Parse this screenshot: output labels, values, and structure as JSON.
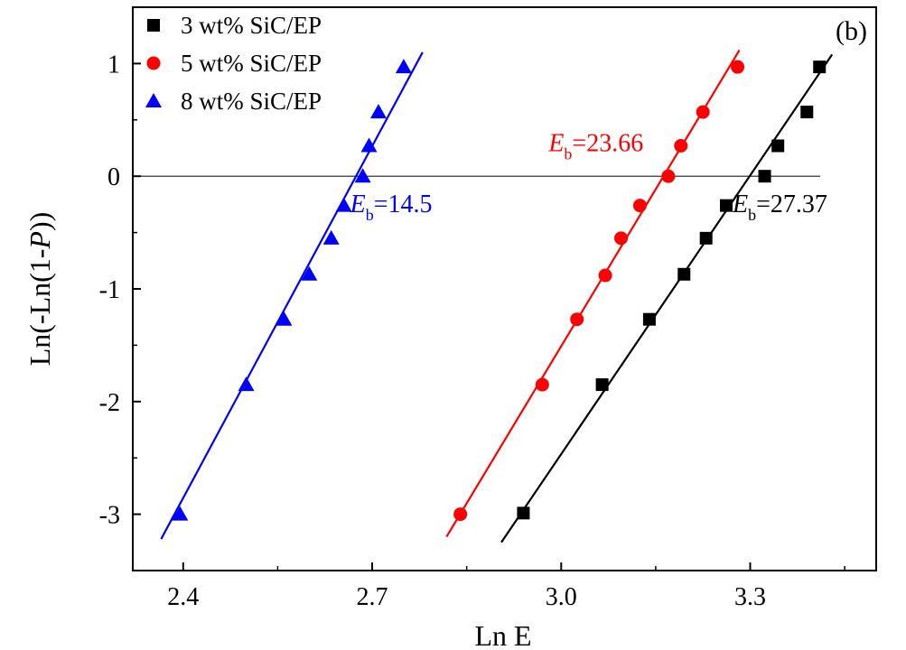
{
  "chart_data": {
    "type": "scatter",
    "panel_label": "(b)",
    "xlabel": "Ln E",
    "ylabel_parts": [
      "Ln(-Ln(1-",
      "P",
      "))"
    ],
    "xlim": [
      2.32,
      3.5
    ],
    "ylim": [
      -3.5,
      1.5
    ],
    "xticks": [
      2.4,
      2.7,
      3.0,
      3.3
    ],
    "xtick_labels": [
      "2.4",
      "2.7",
      "3.0",
      "3.3"
    ],
    "yticks": [
      -3,
      -2,
      -1,
      0,
      1
    ],
    "ytick_labels": [
      "-3",
      "-2",
      "-1",
      "0",
      "1"
    ],
    "reference_line_y": 0,
    "legend_position": "top-left",
    "series": [
      {
        "name": "3 wt% SiC/EP",
        "color": "#000000",
        "marker": "square",
        "x": [
          2.94,
          3.065,
          3.14,
          3.195,
          3.23,
          3.262,
          3.323,
          3.344,
          3.39,
          3.41
        ],
        "y": [
          -2.99,
          -1.85,
          -1.27,
          -0.87,
          -0.55,
          -0.26,
          0.0,
          0.27,
          0.57,
          0.97
        ],
        "fit_x": [
          2.905,
          3.43
        ],
        "fit_y": [
          -3.25,
          1.08
        ],
        "annotation": {
          "E": "E",
          "sub": "b",
          "value": "=27.37",
          "x": 3.272,
          "y": -0.32
        }
      },
      {
        "name": "5 wt% SiC/EP",
        "color": "#ff0000",
        "marker": "circle",
        "x": [
          2.84,
          2.97,
          3.025,
          3.07,
          3.095,
          3.125,
          3.17,
          3.19,
          3.225,
          3.28
        ],
        "y": [
          -3.0,
          -1.85,
          -1.27,
          -0.88,
          -0.55,
          -0.26,
          0.0,
          0.27,
          0.57,
          0.97
        ],
        "fit_x": [
          2.818,
          3.283
        ],
        "fit_y": [
          -3.2,
          1.12
        ],
        "annotation": {
          "E": "E",
          "sub": "b",
          "value": "=23.66",
          "x": 2.98,
          "y": 0.22
        }
      },
      {
        "name": "8 wt% SiC/EP",
        "color": "#0000ff",
        "marker": "triangle",
        "x": [
          2.395,
          2.5,
          2.56,
          2.6,
          2.635,
          2.655,
          2.685,
          2.695,
          2.71,
          2.75
        ],
        "y": [
          -3.0,
          -1.85,
          -1.27,
          -0.87,
          -0.55,
          -0.26,
          0.0,
          0.27,
          0.57,
          0.97
        ],
        "fit_x": [
          2.365,
          2.78
        ],
        "fit_y": [
          -3.22,
          1.1
        ],
        "annotation": {
          "E": "E",
          "sub": "b",
          "value": "=14.5",
          "x": 2.665,
          "y": -0.32
        }
      }
    ]
  }
}
